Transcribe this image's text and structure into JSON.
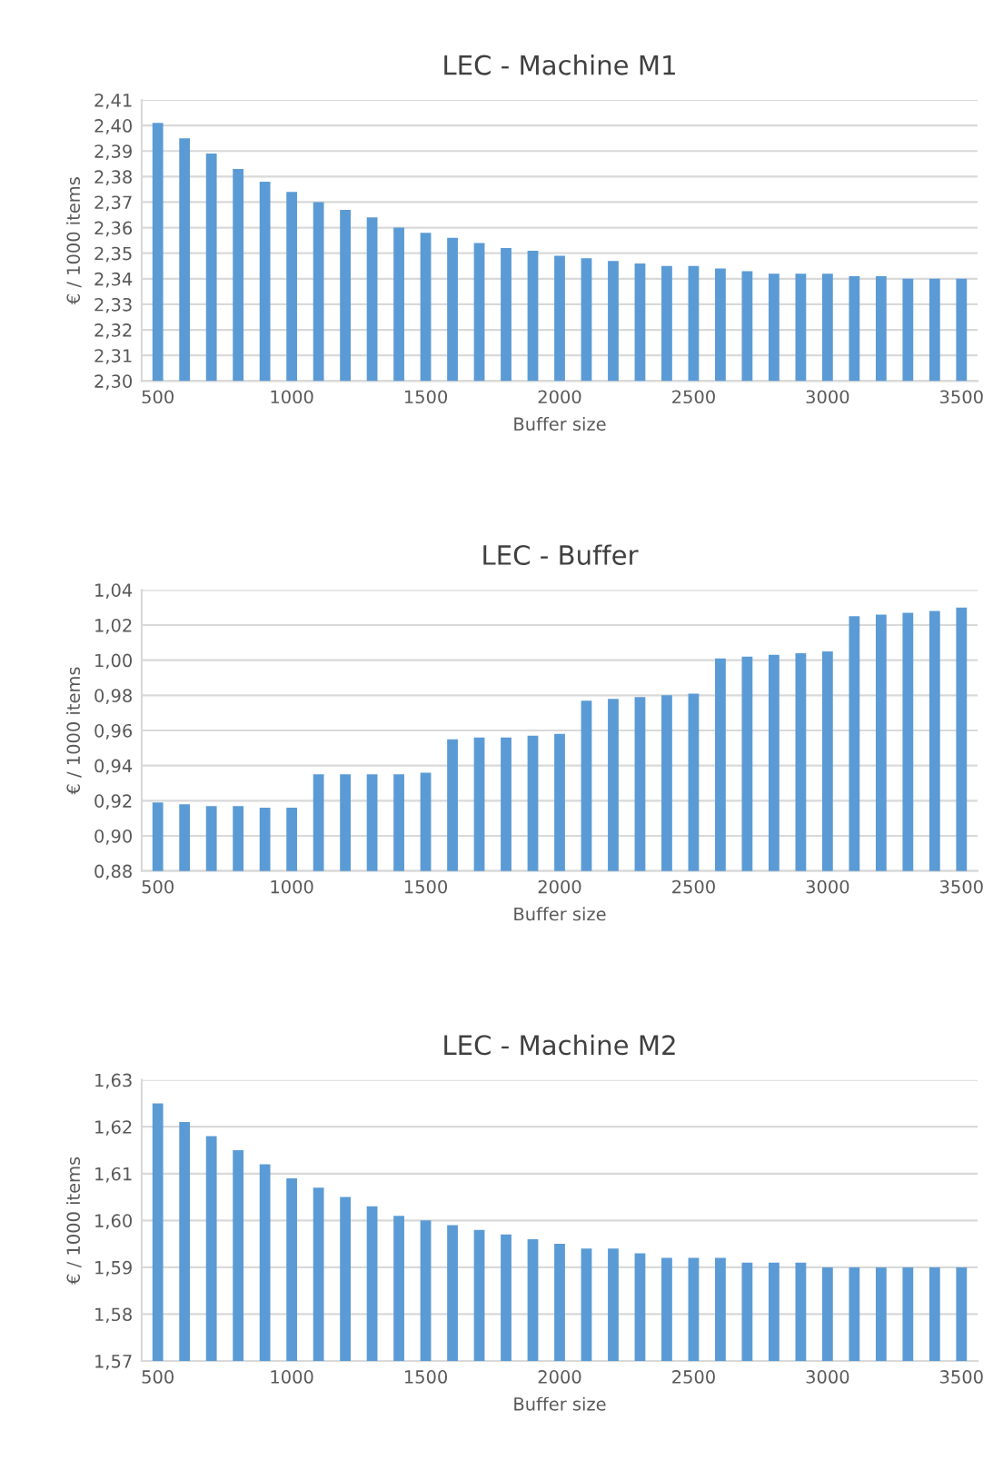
{
  "chart_data": [
    {
      "type": "bar",
      "title": "LEC - Machine M1",
      "xlabel": "Buffer size",
      "ylabel": "€ / 1000 items",
      "color": "#5b9bd5",
      "grid": "y",
      "categories": [
        "500",
        null,
        null,
        null,
        null,
        "1000",
        null,
        null,
        null,
        null,
        "1500",
        null,
        null,
        null,
        null,
        "2000",
        null,
        null,
        null,
        null,
        "2500",
        null,
        null,
        null,
        null,
        "3000",
        null,
        null,
        null,
        null,
        "3500"
      ],
      "values": [
        2.401,
        2.395,
        2.389,
        2.383,
        2.378,
        2.374,
        2.37,
        2.367,
        2.364,
        2.36,
        2.358,
        2.356,
        2.354,
        2.352,
        2.351,
        2.349,
        2.348,
        2.347,
        2.346,
        2.345,
        2.345,
        2.344,
        2.343,
        2.342,
        2.342,
        2.342,
        2.341,
        2.341,
        2.34,
        2.34,
        2.34
      ],
      "ylim": [
        2.3,
        2.41
      ],
      "yticks": [
        {
          "value": 2.3,
          "label": "2,30"
        },
        {
          "value": 2.31,
          "label": "2,31"
        },
        {
          "value": 2.32,
          "label": "2,32"
        },
        {
          "value": 2.33,
          "label": "2,33"
        },
        {
          "value": 2.34,
          "label": "2,34"
        },
        {
          "value": 2.35,
          "label": "2,35"
        },
        {
          "value": 2.36,
          "label": "2,36"
        },
        {
          "value": 2.37,
          "label": "2,37"
        },
        {
          "value": 2.38,
          "label": "2,38"
        },
        {
          "value": 2.39,
          "label": "2,39"
        },
        {
          "value": 2.4,
          "label": "2,40"
        },
        {
          "value": 2.41,
          "label": "2,41"
        }
      ]
    },
    {
      "type": "bar",
      "title": "LEC - Buffer",
      "xlabel": "Buffer size",
      "ylabel": "€ / 1000 items",
      "color": "#5b9bd5",
      "grid": "y",
      "categories": [
        "500",
        null,
        null,
        null,
        null,
        "1000",
        null,
        null,
        null,
        null,
        "1500",
        null,
        null,
        null,
        null,
        "2000",
        null,
        null,
        null,
        null,
        "2500",
        null,
        null,
        null,
        null,
        "3000",
        null,
        null,
        null,
        null,
        "3500"
      ],
      "values": [
        0.919,
        0.918,
        0.917,
        0.917,
        0.916,
        0.916,
        0.935,
        0.935,
        0.935,
        0.935,
        0.936,
        0.955,
        0.956,
        0.956,
        0.957,
        0.958,
        0.977,
        0.978,
        0.979,
        0.98,
        0.981,
        1.001,
        1.002,
        1.003,
        1.004,
        1.005,
        1.025,
        1.026,
        1.027,
        1.028,
        1.03
      ],
      "ylim": [
        0.88,
        1.04
      ],
      "yticks": [
        {
          "value": 0.88,
          "label": "0,88"
        },
        {
          "value": 0.9,
          "label": "0,90"
        },
        {
          "value": 0.92,
          "label": "0,92"
        },
        {
          "value": 0.94,
          "label": "0,94"
        },
        {
          "value": 0.96,
          "label": "0,96"
        },
        {
          "value": 0.98,
          "label": "0,98"
        },
        {
          "value": 1.0,
          "label": "1,00"
        },
        {
          "value": 1.02,
          "label": "1,02"
        },
        {
          "value": 1.04,
          "label": "1,04"
        }
      ]
    },
    {
      "type": "bar",
      "title": "LEC - Machine M2",
      "xlabel": "Buffer size",
      "ylabel": "€ / 1000 items",
      "color": "#5b9bd5",
      "grid": "y",
      "categories": [
        "500",
        null,
        null,
        null,
        null,
        "1000",
        null,
        null,
        null,
        null,
        "1500",
        null,
        null,
        null,
        null,
        "2000",
        null,
        null,
        null,
        null,
        "2500",
        null,
        null,
        null,
        null,
        "3000",
        null,
        null,
        null,
        null,
        "3500"
      ],
      "values": [
        1.625,
        1.621,
        1.618,
        1.615,
        1.612,
        1.609,
        1.607,
        1.605,
        1.603,
        1.601,
        1.6,
        1.599,
        1.598,
        1.597,
        1.596,
        1.595,
        1.594,
        1.594,
        1.593,
        1.592,
        1.592,
        1.592,
        1.591,
        1.591,
        1.591,
        1.59,
        1.59,
        1.59,
        1.59,
        1.59,
        1.59
      ],
      "ylim": [
        1.57,
        1.63
      ],
      "yticks": [
        {
          "value": 1.57,
          "label": "1,57"
        },
        {
          "value": 1.58,
          "label": "1,58"
        },
        {
          "value": 1.59,
          "label": "1,59"
        },
        {
          "value": 1.6,
          "label": "1,60"
        },
        {
          "value": 1.61,
          "label": "1,61"
        },
        {
          "value": 1.62,
          "label": "1,62"
        },
        {
          "value": 1.63,
          "label": "1,63"
        }
      ]
    }
  ]
}
